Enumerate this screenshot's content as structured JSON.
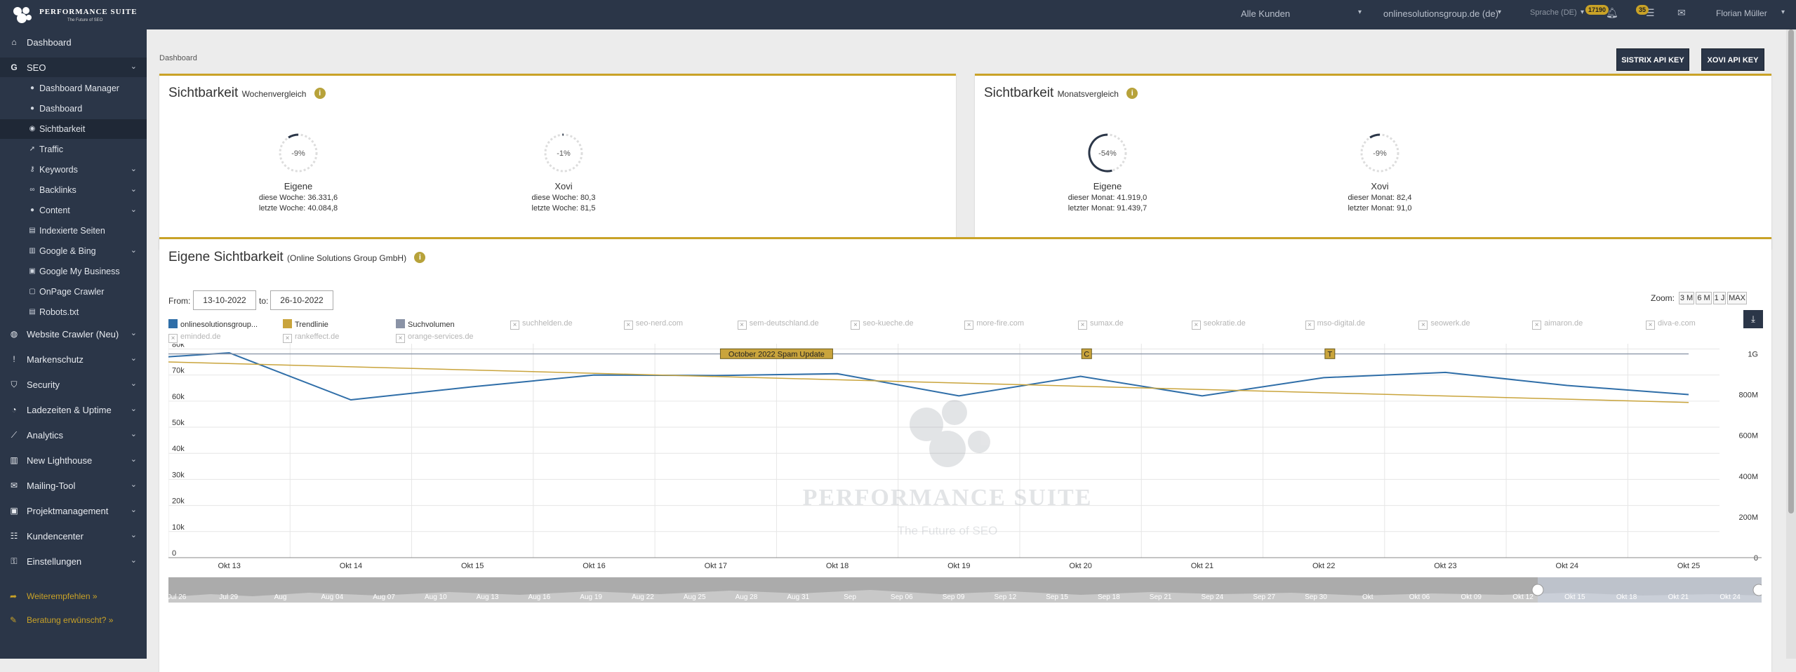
{
  "topbar": {
    "logo_title": "PERFORMANCE SUITE",
    "logo_tagline": "The Future of SEO",
    "customer_select": "Alle Kunden",
    "domain_select": "onlinesolutionsgroup.de (de)",
    "language": "Sprache (DE)",
    "bell_count": "17190",
    "list_count": "35",
    "user": "Florian Müller"
  },
  "sidebar": {
    "items": [
      {
        "label": "Dashboard",
        "icon": "home-icon"
      },
      {
        "label": "SEO",
        "icon": "google-icon"
      },
      {
        "label": "Dashboard Manager",
        "icon": "circle-icon"
      },
      {
        "label": "Dashboard",
        "icon": "circle-icon"
      },
      {
        "label": "Sichtbarkeit",
        "icon": "eye-icon"
      },
      {
        "label": "Traffic",
        "icon": "arrow-icon"
      },
      {
        "label": "Keywords",
        "icon": "key-icon"
      },
      {
        "label": "Backlinks",
        "icon": "link-icon"
      },
      {
        "label": "Content",
        "icon": "circle-icon"
      },
      {
        "label": "Indexierte Seiten",
        "icon": "file-icon"
      },
      {
        "label": "Google & Bing",
        "icon": "chart-icon"
      },
      {
        "label": "Google My Business",
        "icon": "briefcase-icon"
      },
      {
        "label": "OnPage Crawler",
        "icon": "code-icon"
      },
      {
        "label": "Robots.txt",
        "icon": "file-icon"
      },
      {
        "label": "Website Crawler (Neu)",
        "icon": "globe-icon"
      },
      {
        "label": "Markenschutz",
        "icon": "info-icon"
      },
      {
        "label": "Security",
        "icon": "shield-icon"
      },
      {
        "label": "Ladezeiten & Uptime",
        "icon": "gauge-icon"
      },
      {
        "label": "Analytics",
        "icon": "line-chart-icon"
      },
      {
        "label": "New Lighthouse",
        "icon": "chart-icon"
      },
      {
        "label": "Mailing-Tool",
        "icon": "mail-icon"
      },
      {
        "label": "Projektmanagement",
        "icon": "briefcase-icon"
      },
      {
        "label": "Kundencenter",
        "icon": "users-icon"
      },
      {
        "label": "Einstellungen",
        "icon": "lock-icon"
      }
    ],
    "footer": [
      {
        "label": "Weiterempfehlen »",
        "icon": "share-icon"
      },
      {
        "label": "Beratung erwünscht? »",
        "icon": "chat-icon"
      }
    ]
  },
  "page": {
    "breadcrumb": "Dashboard",
    "sistrix_btn": "SISTRIX API KEY",
    "xovi_btn": "XOVI API KEY"
  },
  "weekly": {
    "title": "Sichtbarkeit",
    "subtitle": "Wochenvergleich",
    "gauges": [
      {
        "pct": "-9%",
        "fraction": 0.09,
        "name": "Eigene",
        "line1": "diese Woche: 36.331,6",
        "line2": "letzte Woche: 40.084,8"
      },
      {
        "pct": "-1%",
        "fraction": 0.01,
        "name": "Xovi",
        "line1": "diese Woche: 80,3",
        "line2": "letzte Woche: 81,5"
      }
    ]
  },
  "monthly": {
    "title": "Sichtbarkeit",
    "subtitle": "Monatsvergleich",
    "gauges": [
      {
        "pct": "-54%",
        "fraction": 0.54,
        "name": "Eigene",
        "line1": "dieser Monat: 41.919,0",
        "line2": "letzter Monat: 91.439,7"
      },
      {
        "pct": "-9%",
        "fraction": 0.09,
        "name": "Xovi",
        "line1": "dieser Monat: 82,4",
        "line2": "letzter Monat: 91,0"
      }
    ]
  },
  "own": {
    "title": "Eigene Sichtbarkeit",
    "subtitle": "(Online Solutions Group GmbH)",
    "from_label": "From:",
    "from_value": "13-10-2022",
    "to_label": "to:",
    "to_value": "26-10-2022",
    "zoom_label": "Zoom:",
    "zoom_options": [
      "3 M",
      "6 M",
      "1 J",
      "MAX"
    ]
  },
  "legend": {
    "active": [
      {
        "label": "onlinesolutionsgroup...",
        "color": "#2f6ea8"
      },
      {
        "label": "Trendlinie",
        "color": "#c9a43c"
      },
      {
        "label": "Suchvolumen",
        "color": "#8a93a6"
      }
    ],
    "inactive": [
      "suchhelden.de",
      "seo-nerd.com",
      "sem-deutschland.de",
      "seo-kueche.de",
      "more-fire.com",
      "sumax.de",
      "seokratie.de",
      "mso-digital.de",
      "seowerk.de",
      "aimaron.de",
      "diva-e.com",
      "eminded.de",
      "rankeffect.de",
      "orange-services.de"
    ]
  },
  "watermark": {
    "title": "PERFORMANCE SUITE",
    "tagline": "The Future of SEO"
  },
  "chart_data": {
    "type": "line",
    "x": [
      "Okt 13",
      "Okt 14",
      "Okt 15",
      "Okt 16",
      "Okt 17",
      "Okt 18",
      "Okt 19",
      "Okt 20",
      "Okt 21",
      "Okt 22",
      "Okt 23",
      "Okt 24",
      "Okt 25"
    ],
    "series": [
      {
        "name": "onlinesolutionsgroup...",
        "color": "#2f6ea8",
        "x": [
          12.5,
          13,
          14,
          15,
          16,
          17,
          18,
          19,
          20,
          21,
          22,
          23,
          24,
          25
        ],
        "values": [
          77000,
          78500,
          60500,
          65500,
          70000,
          69800,
          70500,
          62000,
          69500,
          62000,
          69000,
          71000,
          66000,
          62500
        ]
      },
      {
        "name": "Trendlinie",
        "color": "#c9a43c",
        "x": [
          12.5,
          25
        ],
        "values": [
          75000,
          59500
        ]
      },
      {
        "name": "Suchvolumen",
        "color": "#8a93a6",
        "x": [
          12.5,
          25
        ],
        "values": [
          1000000000,
          1000000000
        ]
      }
    ],
    "y_left_ticks": [
      "0",
      "10k",
      "20k",
      "30k",
      "40k",
      "50k",
      "60k",
      "70k",
      "80k"
    ],
    "y_right_ticks": [
      "0",
      "200M",
      "400M",
      "600M",
      "800M",
      "1G"
    ],
    "ylim": [
      0,
      82000
    ],
    "ylim_right": [
      0,
      1050000000
    ],
    "annotations": [
      {
        "label": "October 2022 Spam Update",
        "x": 17.5
      },
      {
        "label": "C",
        "x": 20.05
      },
      {
        "label": "T",
        "x": 22.05
      }
    ],
    "navigator_labels": [
      "Jul 26",
      "Jul 29",
      "Aug",
      "Aug 04",
      "Aug 07",
      "Aug 10",
      "Aug 13",
      "Aug 16",
      "Aug 19",
      "Aug 22",
      "Aug 25",
      "Aug 28",
      "Aug 31",
      "Sep",
      "Sep 06",
      "Sep 09",
      "Sep 12",
      "Sep 15",
      "Sep 18",
      "Sep 21",
      "Sep 24",
      "Sep 27",
      "Sep 30",
      "Okt",
      "Okt 06",
      "Okt 09",
      "Okt 12",
      "Okt 15",
      "Okt 18",
      "Okt 21",
      "Okt 24"
    ],
    "grid": true
  }
}
